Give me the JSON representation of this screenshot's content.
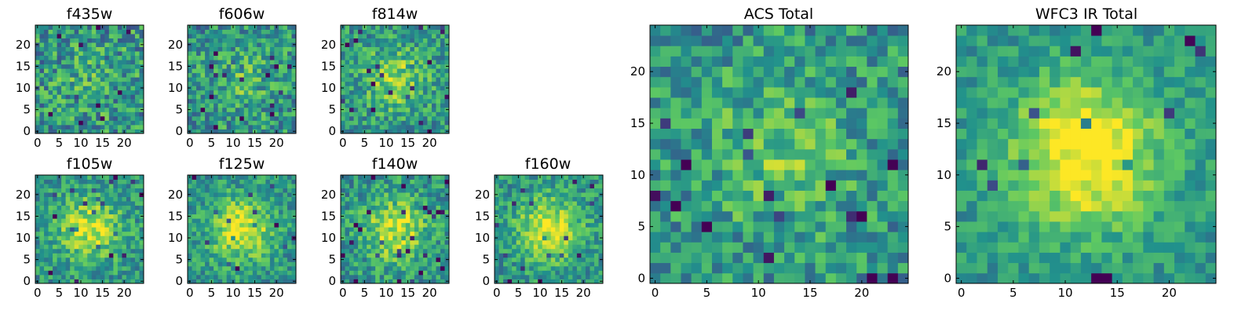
{
  "colormap": "viridis",
  "colors": {
    "axis": "#000000",
    "background": "#ffffff"
  },
  "chart_data": [
    {
      "type": "heatmap",
      "title": "f435w",
      "grid_size": 25,
      "cmap": "viridis",
      "blob": 0.1,
      "noise": 0.55,
      "seed": 11,
      "xticks": [
        "0",
        "5",
        "10",
        "15",
        "20"
      ],
      "yticks": [
        "0",
        "5",
        "10",
        "15",
        "20"
      ]
    },
    {
      "type": "heatmap",
      "title": "f606w",
      "grid_size": 25,
      "cmap": "viridis",
      "blob": 0.15,
      "noise": 0.5,
      "seed": 23,
      "xticks": [
        "0",
        "5",
        "10",
        "15",
        "20"
      ],
      "yticks": [
        "0",
        "5",
        "10",
        "15",
        "20"
      ]
    },
    {
      "type": "heatmap",
      "title": "f814w",
      "grid_size": 25,
      "cmap": "viridis",
      "blob": 0.3,
      "noise": 0.45,
      "seed": 37,
      "xticks": [
        "0",
        "5",
        "10",
        "15",
        "20"
      ],
      "yticks": [
        "0",
        "5",
        "10",
        "15",
        "20"
      ]
    },
    {
      "type": "heatmap",
      "title": "f105w",
      "grid_size": 25,
      "cmap": "viridis",
      "blob": 0.4,
      "noise": 0.4,
      "seed": 41,
      "xticks": [
        "0",
        "5",
        "10",
        "15",
        "20"
      ],
      "yticks": [
        "0",
        "5",
        "10",
        "15",
        "20"
      ]
    },
    {
      "type": "heatmap",
      "title": "f125w",
      "grid_size": 25,
      "cmap": "viridis",
      "blob": 0.45,
      "noise": 0.38,
      "seed": 53,
      "xticks": [
        "0",
        "5",
        "10",
        "15",
        "20"
      ],
      "yticks": [
        "0",
        "5",
        "10",
        "15",
        "20"
      ]
    },
    {
      "type": "heatmap",
      "title": "f140w",
      "grid_size": 25,
      "cmap": "viridis",
      "blob": 0.4,
      "noise": 0.42,
      "seed": 67,
      "xticks": [
        "0",
        "5",
        "10",
        "15",
        "20"
      ],
      "yticks": [
        "0",
        "5",
        "10",
        "15",
        "20"
      ]
    },
    {
      "type": "heatmap",
      "title": "f160w",
      "grid_size": 25,
      "cmap": "viridis",
      "blob": 0.45,
      "noise": 0.38,
      "seed": 79,
      "xticks": [
        "0",
        "5",
        "10",
        "15",
        "20"
      ],
      "yticks": [
        "0",
        "5",
        "10",
        "15",
        "20"
      ]
    },
    {
      "type": "heatmap",
      "title": "ACS Total",
      "grid_size": 25,
      "cmap": "viridis",
      "blob": 0.2,
      "noise": 0.45,
      "seed": 83,
      "xticks": [
        "0",
        "5",
        "10",
        "15",
        "20"
      ],
      "yticks": [
        "0",
        "5",
        "10",
        "15",
        "20"
      ]
    },
    {
      "type": "heatmap",
      "title": "WFC3 IR Total",
      "grid_size": 25,
      "cmap": "viridis",
      "blob": 0.55,
      "noise": 0.28,
      "seed": 97,
      "xticks": [
        "0",
        "5",
        "10",
        "15",
        "20"
      ],
      "yticks": [
        "0",
        "5",
        "10",
        "15",
        "20"
      ]
    }
  ]
}
